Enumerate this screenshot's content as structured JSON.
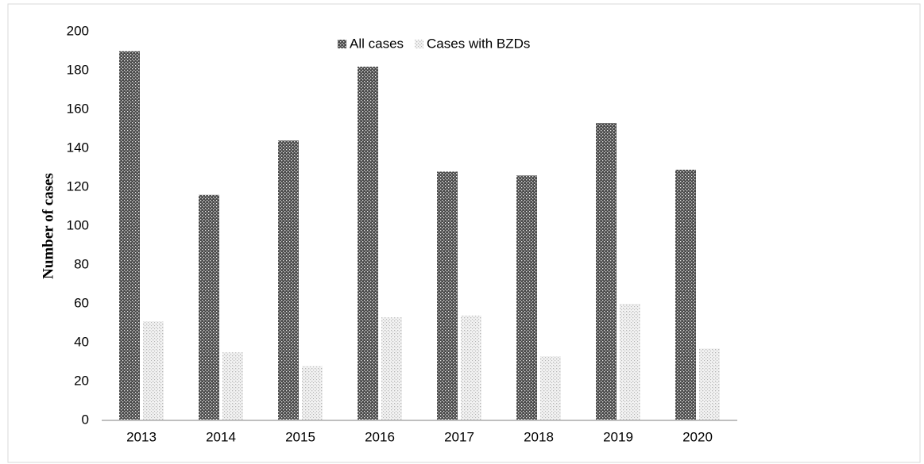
{
  "chart_data": {
    "type": "bar",
    "y_label": "Number of cases",
    "categories": [
      "2013",
      "2014",
      "2015",
      "2016",
      "2017",
      "2018",
      "2019",
      "2020"
    ],
    "series": [
      {
        "name": "All cases",
        "color": "#4a4a4a",
        "values": [
          190,
          116,
          144,
          182,
          128,
          126,
          153,
          129
        ]
      },
      {
        "name": "Cases with BZDs",
        "color": "#b5b5b5",
        "values": [
          51,
          35,
          28,
          53,
          54,
          33,
          60,
          37
        ]
      }
    ],
    "ylim": [
      0,
      200
    ],
    "yticks": [
      0,
      20,
      40,
      60,
      80,
      100,
      120,
      140,
      160,
      180,
      200
    ],
    "legend": "top"
  }
}
